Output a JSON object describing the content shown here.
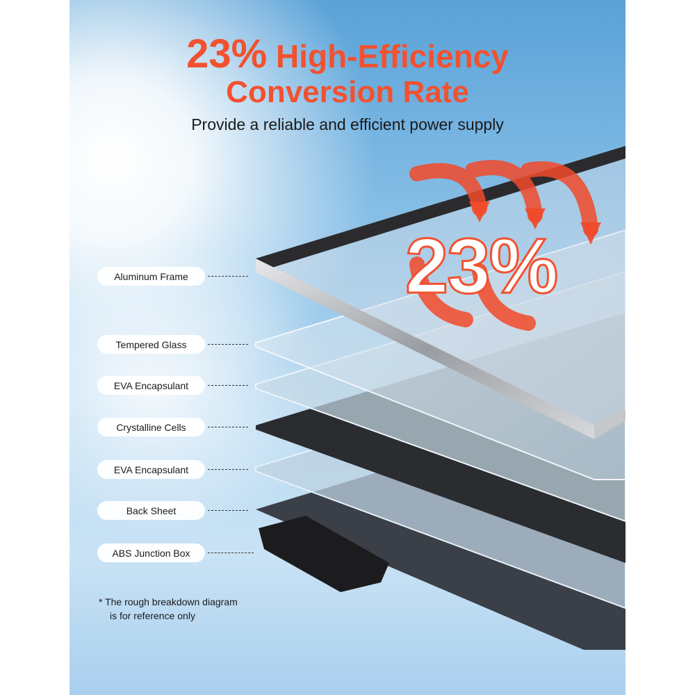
{
  "headline": {
    "percent": "23%",
    "line1_rest": "High-Efficiency",
    "line2": "Conversion Rate"
  },
  "subtitle": "Provide a reliable and efficient power supply",
  "badge_value": "23%",
  "layers": [
    {
      "label": "Aluminum Frame"
    },
    {
      "label": "Tempered Glass"
    },
    {
      "label": "EVA Encapsulant"
    },
    {
      "label": "Crystalline Cells"
    },
    {
      "label": "EVA Encapsulant"
    },
    {
      "label": "Back Sheet"
    },
    {
      "label": "ABS Junction Box"
    }
  ],
  "note": {
    "line1": "The rough breakdown diagram",
    "line2": "is for reference only",
    "bullet": "*"
  },
  "colors": {
    "accent": "#f2512f",
    "sky": "#5aa2d8"
  }
}
